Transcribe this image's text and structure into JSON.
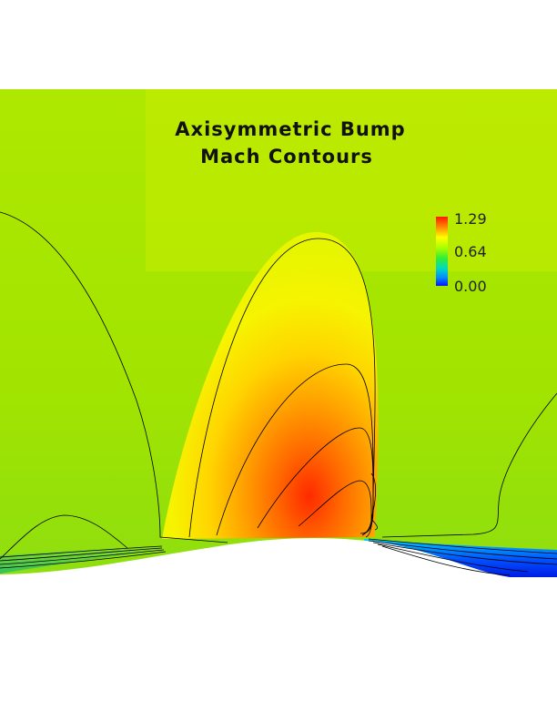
{
  "title": {
    "line1": "Axisymmetric Bump",
    "line2": "Mach Contours"
  },
  "legend": {
    "max_label": "1.29",
    "mid_label": "0.64",
    "min_label": "0.00",
    "colors": [
      "#ff1a00",
      "#ff8800",
      "#ffff00",
      "#aaff00",
      "#33ee33",
      "#00d9c0",
      "#008cff",
      "#0018ff"
    ]
  },
  "colors": {
    "freestream": "#a6e600",
    "supersonic_core": "#ff3a00",
    "separated_flow": "#0022ff",
    "contour_line": "#000000"
  }
}
